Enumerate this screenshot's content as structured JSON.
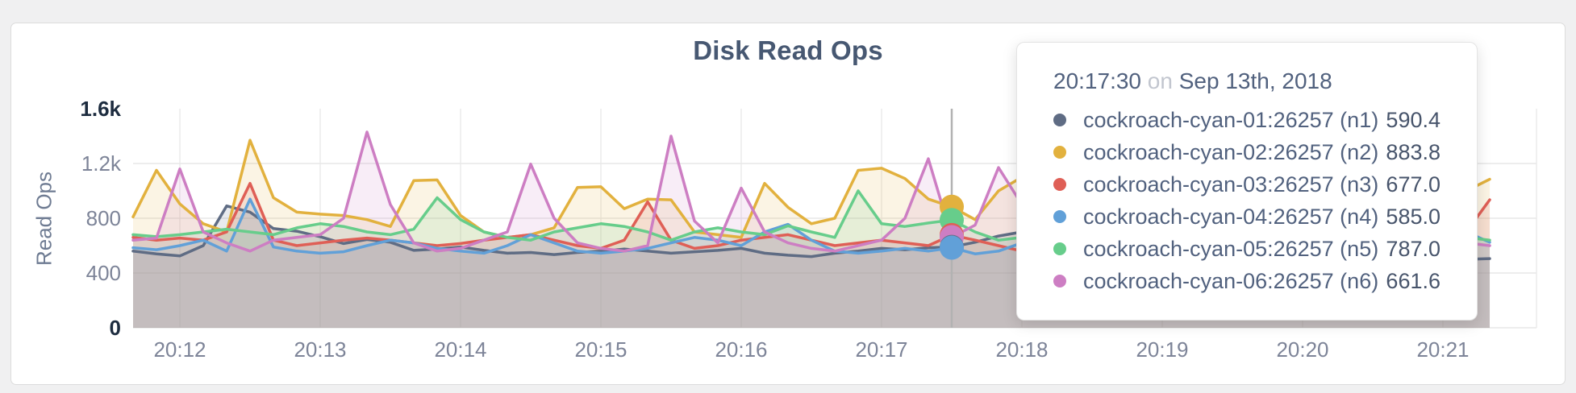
{
  "chart_data": {
    "type": "area",
    "title": "Disk Read Ops",
    "ylabel": "Read Ops",
    "ylim": [
      0,
      1600
    ],
    "grid": true,
    "yticks": [
      {
        "value": 0,
        "label": "0",
        "grid": true,
        "strong": true
      },
      {
        "value": 400,
        "label": "400",
        "grid": true,
        "strong": false
      },
      {
        "value": 800,
        "label": "800",
        "grid": true,
        "strong": false
      },
      {
        "value": 1200,
        "label": "1.2k",
        "grid": true,
        "strong": false
      },
      {
        "value": 1600,
        "label": "1.6k",
        "grid": false,
        "strong": true
      }
    ],
    "xticks": [
      {
        "label": "20:12",
        "offset_seconds": 20
      },
      {
        "label": "20:13",
        "offset_seconds": 80
      },
      {
        "label": "20:14",
        "offset_seconds": 140
      },
      {
        "label": "20:15",
        "offset_seconds": 200
      },
      {
        "label": "20:16",
        "offset_seconds": 260
      },
      {
        "label": "20:17",
        "offset_seconds": 320
      },
      {
        "label": "20:18",
        "offset_seconds": 380
      },
      {
        "label": "20:19",
        "offset_seconds": 440
      },
      {
        "label": "20:20",
        "offset_seconds": 500
      },
      {
        "label": "20:21",
        "offset_seconds": 560
      }
    ],
    "domain_seconds": 600,
    "sample_interval_seconds": 10,
    "legend_position": "tooltip-only",
    "series": [
      {
        "name": "cockroach-cyan-01:26257 (n1)",
        "color": "#5f6c84",
        "values": [
          560,
          540,
          525,
          600,
          890,
          845,
          725,
          705,
          665,
          615,
          645,
          625,
          565,
          575,
          590,
          565,
          545,
          550,
          535,
          550,
          560,
          575,
          560,
          545,
          555,
          565,
          580,
          545,
          530,
          520,
          545,
          560,
          580,
          570,
          585,
          590.4,
          625,
          670,
          700,
          685,
          650,
          625,
          600,
          590,
          580,
          570,
          560,
          550,
          545,
          555,
          560,
          550,
          540,
          530,
          520,
          510,
          505,
          500,
          505
        ]
      },
      {
        "name": "cockroach-cyan-02:26257 (n2)",
        "color": "#e2b13e",
        "values": [
          810,
          1150,
          905,
          760,
          700,
          1370,
          950,
          845,
          830,
          820,
          790,
          740,
          1075,
          1080,
          820,
          700,
          660,
          680,
          730,
          1025,
          1030,
          870,
          940,
          935,
          700,
          680,
          660,
          1055,
          880,
          760,
          800,
          1150,
          1165,
          1090,
          940,
          883.8,
          790,
          1000,
          1100,
          1050,
          900,
          850,
          820,
          800,
          830,
          860,
          840,
          800,
          780,
          820,
          860,
          830,
          800,
          780,
          760,
          800,
          900,
          1000,
          1085
        ]
      },
      {
        "name": "cockroach-cyan-03:26257 (n3)",
        "color": "#df5f56",
        "values": [
          660,
          640,
          655,
          640,
          700,
          1055,
          640,
          600,
          620,
          640,
          655,
          640,
          620,
          600,
          615,
          640,
          660,
          680,
          640,
          600,
          580,
          640,
          920,
          640,
          580,
          600,
          640,
          660,
          680,
          640,
          600,
          620,
          640,
          620,
          600,
          677,
          640,
          600,
          560,
          580,
          600,
          620,
          640,
          620,
          600,
          580,
          600,
          620,
          640,
          620,
          600,
          580,
          600,
          620,
          560,
          540,
          560,
          700,
          935
        ]
      },
      {
        "name": "cockroach-cyan-04:26257 (n4)",
        "color": "#61a0d8",
        "values": [
          585,
          570,
          600,
          640,
          560,
          940,
          590,
          560,
          545,
          555,
          600,
          640,
          620,
          580,
          560,
          545,
          600,
          680,
          620,
          560,
          545,
          560,
          580,
          620,
          660,
          640,
          600,
          700,
          755,
          640,
          560,
          545,
          560,
          580,
          560,
          585,
          540,
          560,
          620,
          640,
          600,
          580,
          560,
          580,
          600,
          620,
          600,
          580,
          560,
          580,
          600,
          620,
          600,
          580,
          640,
          820,
          975,
          700,
          625
        ]
      },
      {
        "name": "cockroach-cyan-05:26257 (n5)",
        "color": "#67cd8b",
        "values": [
          680,
          665,
          680,
          700,
          720,
          700,
          680,
          730,
          760,
          740,
          700,
          680,
          720,
          950,
          790,
          700,
          660,
          640,
          700,
          730,
          760,
          740,
          700,
          640,
          700,
          730,
          700,
          680,
          745,
          700,
          660,
          1000,
          760,
          740,
          765,
          787,
          700,
          640,
          660,
          680,
          700,
          720,
          700,
          680,
          700,
          720,
          740,
          720,
          700,
          680,
          700,
          720,
          700,
          680,
          660,
          640,
          650,
          660,
          640
        ]
      },
      {
        "name": "cockroach-cyan-06:26257 (n6)",
        "color": "#cd7ec3",
        "values": [
          640,
          655,
          1160,
          700,
          620,
          560,
          640,
          660,
          680,
          800,
          1430,
          900,
          620,
          560,
          580,
          640,
          700,
          1195,
          800,
          620,
          580,
          560,
          600,
          1400,
          780,
          620,
          1020,
          700,
          620,
          580,
          560,
          600,
          640,
          800,
          1235,
          661.6,
          750,
          1170,
          900,
          700,
          660,
          640,
          620,
          640,
          660,
          680,
          660,
          640,
          620,
          640,
          660,
          680,
          660,
          640,
          620,
          600,
          610,
          620,
          600
        ]
      }
    ]
  },
  "hover": {
    "index": 35
  },
  "tooltip": {
    "time": "20:17:30",
    "conjunction": "on",
    "date": "Sep 13th, 2018",
    "rows": [
      {
        "name": "cockroach-cyan-01:26257 (n1)",
        "value": "590.4",
        "color": "#5f6c84"
      },
      {
        "name": "cockroach-cyan-02:26257 (n2)",
        "value": "883.8",
        "color": "#e2b13e"
      },
      {
        "name": "cockroach-cyan-03:26257 (n3)",
        "value": "677.0",
        "color": "#df5f56"
      },
      {
        "name": "cockroach-cyan-04:26257 (n4)",
        "value": "585.0",
        "color": "#61a0d8"
      },
      {
        "name": "cockroach-cyan-05:26257 (n5)",
        "value": "787.0",
        "color": "#67cd8b"
      },
      {
        "name": "cockroach-cyan-06:26257 (n6)",
        "value": "661.6",
        "color": "#cd7ec3"
      }
    ]
  }
}
